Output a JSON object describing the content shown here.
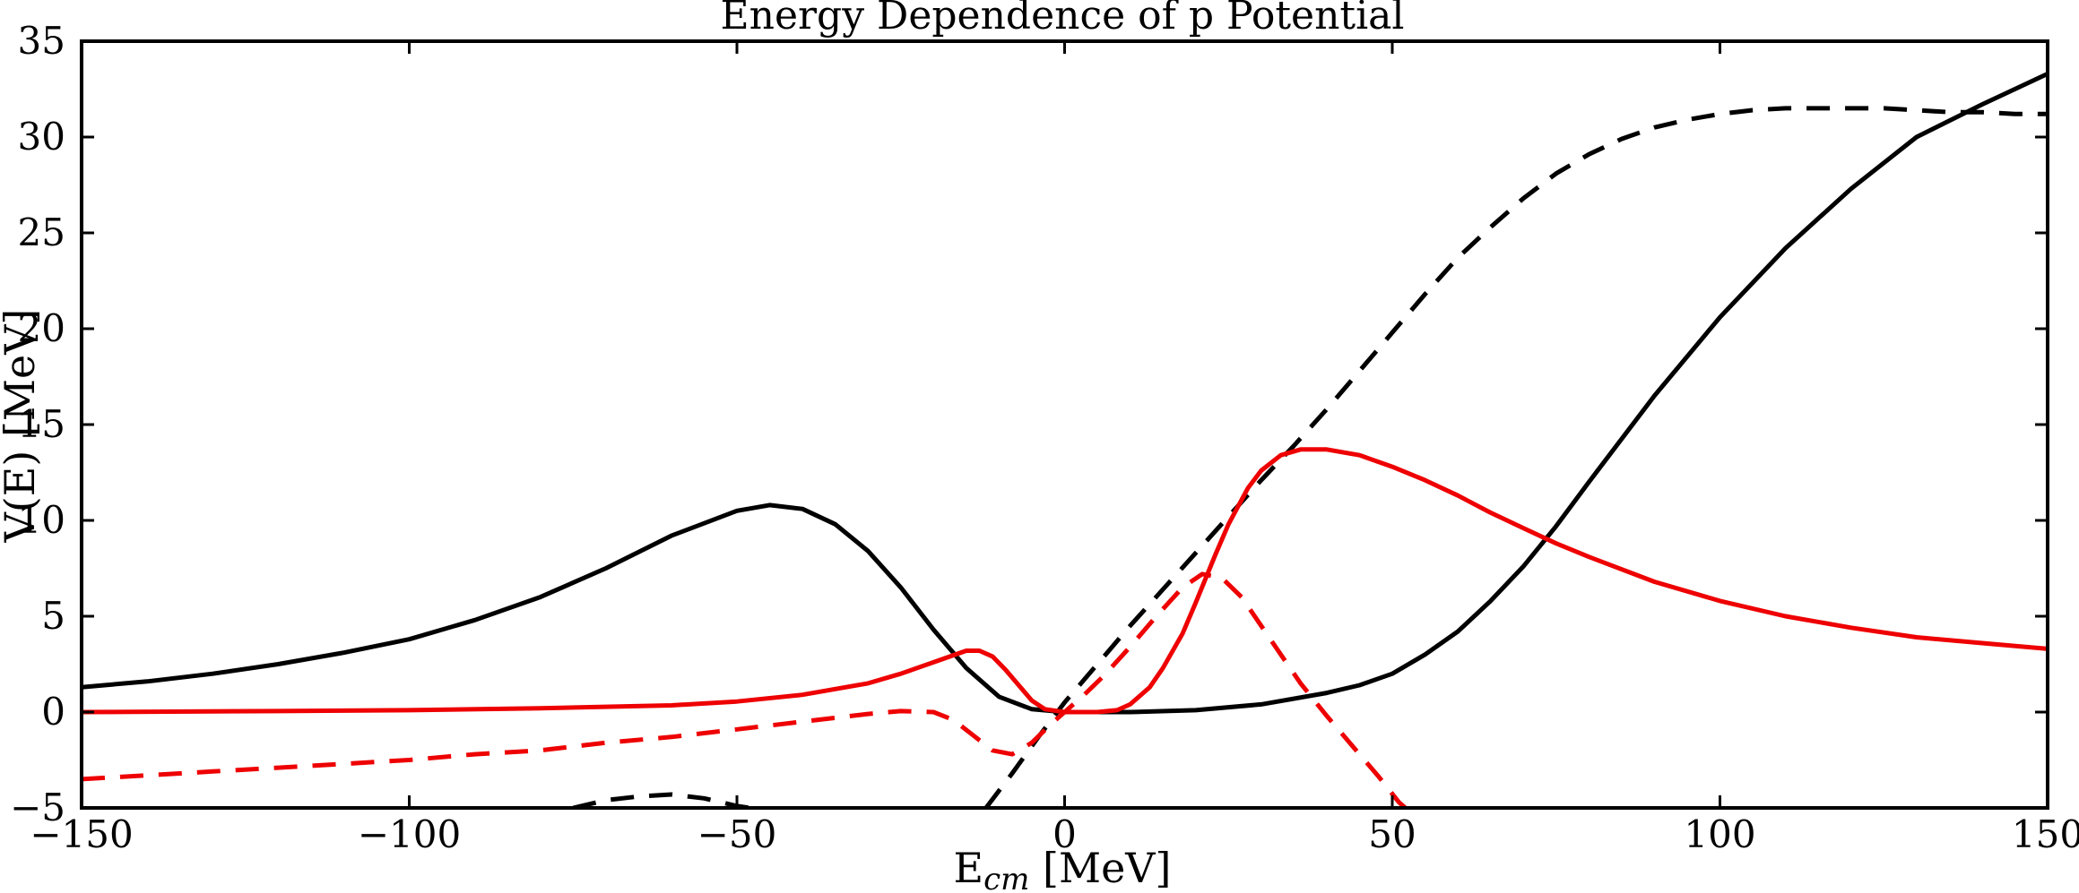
{
  "chart_data": {
    "type": "line",
    "title": "Energy Dependence of p Potential",
    "xlabel": "E",
    "xlabel_sub": "cm",
    "xlabel_unit": " [MeV]",
    "ylabel": "V(E) [MeV]",
    "xlim": [
      -150,
      150
    ],
    "ylim": [
      -5,
      35
    ],
    "x_ticks": [
      -150,
      -100,
      -50,
      0,
      50,
      100,
      150
    ],
    "x_tick_labels": [
      "−150",
      "−100",
      "−50",
      "0",
      "50",
      "100",
      "150"
    ],
    "y_ticks": [
      -5,
      0,
      5,
      10,
      15,
      20,
      25,
      30,
      35
    ],
    "y_tick_labels": [
      "−5",
      "0",
      "5",
      "10",
      "15",
      "20",
      "25",
      "30",
      "35"
    ],
    "grid": false,
    "series": [
      {
        "color": "#000000",
        "dash": "solid",
        "points": [
          [
            -150,
            1.3
          ],
          [
            -140,
            1.6
          ],
          [
            -130,
            2.0
          ],
          [
            -120,
            2.5
          ],
          [
            -110,
            3.1
          ],
          [
            -100,
            3.8
          ],
          [
            -90,
            4.8
          ],
          [
            -80,
            6.0
          ],
          [
            -70,
            7.5
          ],
          [
            -60,
            9.2
          ],
          [
            -50,
            10.5
          ],
          [
            -45,
            10.8
          ],
          [
            -40,
            10.6
          ],
          [
            -35,
            9.8
          ],
          [
            -30,
            8.4
          ],
          [
            -25,
            6.5
          ],
          [
            -20,
            4.3
          ],
          [
            -15,
            2.3
          ],
          [
            -10,
            0.8
          ],
          [
            -5,
            0.15
          ],
          [
            0,
            0.0
          ],
          [
            10,
            0.0
          ],
          [
            20,
            0.1
          ],
          [
            30,
            0.4
          ],
          [
            40,
            1.0
          ],
          [
            45,
            1.4
          ],
          [
            50,
            2.0
          ],
          [
            55,
            3.0
          ],
          [
            60,
            4.2
          ],
          [
            65,
            5.8
          ],
          [
            70,
            7.6
          ],
          [
            75,
            9.7
          ],
          [
            80,
            12.0
          ],
          [
            90,
            16.5
          ],
          [
            100,
            20.6
          ],
          [
            110,
            24.2
          ],
          [
            120,
            27.3
          ],
          [
            130,
            30.0
          ],
          [
            140,
            31.7
          ],
          [
            150,
            33.3
          ]
        ]
      },
      {
        "color": "#000000",
        "dash": "dashed",
        "points": [
          [
            -75,
            -5.0
          ],
          [
            -70,
            -4.6
          ],
          [
            -65,
            -4.4
          ],
          [
            -60,
            -4.3
          ],
          [
            -55,
            -4.5
          ],
          [
            -50,
            -4.9
          ],
          [
            -48,
            -5.0
          ]
        ]
      },
      {
        "color": "#000000",
        "dash": "dashed",
        "points": [
          [
            -12,
            -5.0
          ],
          [
            -8,
            -3.2
          ],
          [
            -4,
            -1.3
          ],
          [
            0,
            0.5
          ],
          [
            5,
            2.5
          ],
          [
            10,
            4.5
          ],
          [
            15,
            6.4
          ],
          [
            20,
            8.3
          ],
          [
            25,
            10.2
          ],
          [
            30,
            12.1
          ],
          [
            35,
            13.9
          ],
          [
            40,
            15.8
          ],
          [
            45,
            17.8
          ],
          [
            50,
            19.8
          ],
          [
            55,
            21.8
          ],
          [
            60,
            23.7
          ],
          [
            65,
            25.3
          ],
          [
            70,
            26.8
          ],
          [
            75,
            28.1
          ],
          [
            80,
            29.1
          ],
          [
            85,
            29.9
          ],
          [
            90,
            30.5
          ],
          [
            95,
            30.9
          ],
          [
            100,
            31.2
          ],
          [
            105,
            31.4
          ],
          [
            110,
            31.5
          ],
          [
            115,
            31.5
          ],
          [
            120,
            31.5
          ],
          [
            125,
            31.5
          ],
          [
            130,
            31.4
          ],
          [
            135,
            31.3
          ],
          [
            140,
            31.3
          ],
          [
            145,
            31.2
          ],
          [
            150,
            31.2
          ]
        ]
      },
      {
        "color": "#ee0000",
        "dash": "solid",
        "points": [
          [
            -150,
            0.0
          ],
          [
            -120,
            0.05
          ],
          [
            -100,
            0.1
          ],
          [
            -80,
            0.2
          ],
          [
            -60,
            0.35
          ],
          [
            -50,
            0.55
          ],
          [
            -40,
            0.9
          ],
          [
            -30,
            1.5
          ],
          [
            -25,
            2.0
          ],
          [
            -20,
            2.6
          ],
          [
            -15,
            3.2
          ],
          [
            -13,
            3.2
          ],
          [
            -11,
            2.9
          ],
          [
            -9,
            2.2
          ],
          [
            -7,
            1.4
          ],
          [
            -5,
            0.6
          ],
          [
            -3,
            0.15
          ],
          [
            0,
            0.0
          ],
          [
            5,
            0.0
          ],
          [
            8,
            0.1
          ],
          [
            10,
            0.4
          ],
          [
            13,
            1.3
          ],
          [
            15,
            2.3
          ],
          [
            18,
            4.1
          ],
          [
            20,
            5.7
          ],
          [
            23,
            8.2
          ],
          [
            25,
            9.8
          ],
          [
            28,
            11.7
          ],
          [
            30,
            12.6
          ],
          [
            33,
            13.4
          ],
          [
            36,
            13.7
          ],
          [
            40,
            13.7
          ],
          [
            45,
            13.4
          ],
          [
            50,
            12.8
          ],
          [
            55,
            12.1
          ],
          [
            60,
            11.3
          ],
          [
            65,
            10.4
          ],
          [
            70,
            9.6
          ],
          [
            75,
            8.8
          ],
          [
            80,
            8.1
          ],
          [
            90,
            6.8
          ],
          [
            100,
            5.8
          ],
          [
            110,
            5.0
          ],
          [
            120,
            4.4
          ],
          [
            130,
            3.9
          ],
          [
            140,
            3.6
          ],
          [
            150,
            3.3
          ]
        ]
      },
      {
        "color": "#ee0000",
        "dash": "dashed",
        "points": [
          [
            -150,
            -3.5
          ],
          [
            -140,
            -3.3
          ],
          [
            -130,
            -3.1
          ],
          [
            -120,
            -2.9
          ],
          [
            -110,
            -2.7
          ],
          [
            -100,
            -2.5
          ],
          [
            -90,
            -2.2
          ],
          [
            -80,
            -2.0
          ],
          [
            -70,
            -1.6
          ],
          [
            -60,
            -1.3
          ],
          [
            -50,
            -0.9
          ],
          [
            -40,
            -0.5
          ],
          [
            -30,
            -0.1
          ],
          [
            -25,
            0.05
          ],
          [
            -20,
            0.0
          ],
          [
            -17,
            -0.4
          ],
          [
            -14,
            -1.2
          ],
          [
            -11,
            -2.0
          ],
          [
            -8,
            -2.2
          ],
          [
            -5,
            -1.6
          ],
          [
            -2,
            -0.6
          ],
          [
            0,
            0.0
          ],
          [
            3,
            0.9
          ],
          [
            6,
            1.9
          ],
          [
            10,
            3.4
          ],
          [
            14,
            5.0
          ],
          [
            18,
            6.5
          ],
          [
            21,
            7.2
          ],
          [
            24,
            7.0
          ],
          [
            27,
            6.0
          ],
          [
            30,
            4.5
          ],
          [
            33,
            3.0
          ],
          [
            36,
            1.5
          ],
          [
            40,
            -0.2
          ],
          [
            44,
            -1.8
          ],
          [
            48,
            -3.4
          ],
          [
            51,
            -4.7
          ],
          [
            52,
            -5.0
          ]
        ]
      }
    ]
  }
}
